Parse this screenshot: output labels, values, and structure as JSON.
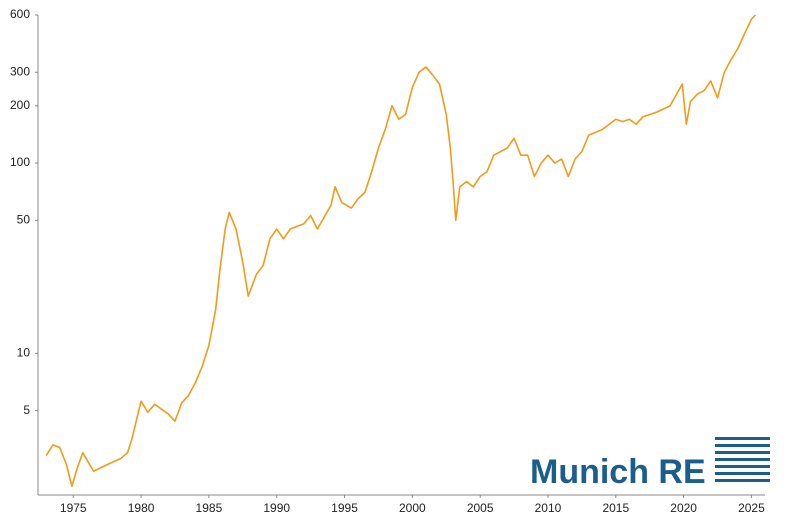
{
  "chart_data": {
    "type": "line",
    "x": [
      1973.0,
      1973.5,
      1974.0,
      1974.5,
      1974.9,
      1975.3,
      1975.7,
      1976.5,
      1977.5,
      1978.5,
      1979.0,
      1979.3,
      1980.0,
      1980.5,
      1981.0,
      1982.0,
      1982.5,
      1983.0,
      1983.5,
      1984.0,
      1984.5,
      1985.0,
      1985.5,
      1985.8,
      1986.2,
      1986.5,
      1987.0,
      1987.5,
      1987.9,
      1988.5,
      1989.0,
      1989.5,
      1990.0,
      1990.5,
      1991.0,
      1992.0,
      1992.5,
      1993.0,
      1993.5,
      1994.0,
      1994.3,
      1994.8,
      1995.5,
      1996.0,
      1996.5,
      1997.0,
      1997.5,
      1998.0,
      1998.5,
      1999.0,
      1999.5,
      2000.0,
      2000.5,
      2001.0,
      2001.5,
      2002.0,
      2002.5,
      2002.8,
      2003.0,
      2003.2,
      2003.5,
      2004.0,
      2004.5,
      2005.0,
      2005.5,
      2006.0,
      2007.0,
      2007.5,
      2008.0,
      2008.5,
      2009.0,
      2009.5,
      2010.0,
      2010.5,
      2011.0,
      2011.5,
      2012.0,
      2012.5,
      2013.0,
      2014.0,
      2015.0,
      2015.5,
      2016.0,
      2016.5,
      2017.0,
      2018.0,
      2019.0,
      2019.9,
      2020.2,
      2020.5,
      2021.0,
      2021.5,
      2022.0,
      2022.5,
      2023.0,
      2023.5,
      2024.0,
      2024.5,
      2025.0,
      2025.3
    ],
    "series": [
      {
        "name": "Munich RE",
        "color": "#f09b1a",
        "values": [
          2.9,
          3.3,
          3.2,
          2.6,
          2.0,
          2.5,
          3.0,
          2.4,
          2.6,
          2.8,
          3.0,
          3.5,
          5.6,
          4.9,
          5.4,
          4.8,
          4.4,
          5.5,
          6.0,
          7.0,
          8.5,
          11,
          17,
          27,
          45,
          55,
          45,
          30,
          20,
          26,
          29,
          40,
          45,
          40,
          45,
          48,
          53,
          45,
          52,
          60,
          75,
          62,
          58,
          65,
          70,
          90,
          120,
          150,
          200,
          170,
          180,
          250,
          300,
          320,
          290,
          260,
          180,
          120,
          80,
          50,
          75,
          80,
          75,
          85,
          90,
          110,
          120,
          135,
          110,
          110,
          85,
          100,
          110,
          100,
          105,
          85,
          105,
          115,
          140,
          150,
          170,
          165,
          170,
          160,
          175,
          185,
          200,
          260,
          160,
          210,
          230,
          240,
          270,
          220,
          300,
          350,
          400,
          480,
          570,
          600
        ]
      }
    ],
    "yscale": "log",
    "xlim": [
      1972.4,
      2026
    ],
    "ylim": [
      1.8,
      600
    ],
    "xticks": [
      1975,
      1980,
      1985,
      1990,
      1995,
      2000,
      2005,
      2010,
      2015,
      2020,
      2025
    ],
    "yticks": [
      5,
      10,
      50,
      100,
      200,
      300,
      600
    ],
    "grid": false,
    "watermark": "Munich RE"
  }
}
